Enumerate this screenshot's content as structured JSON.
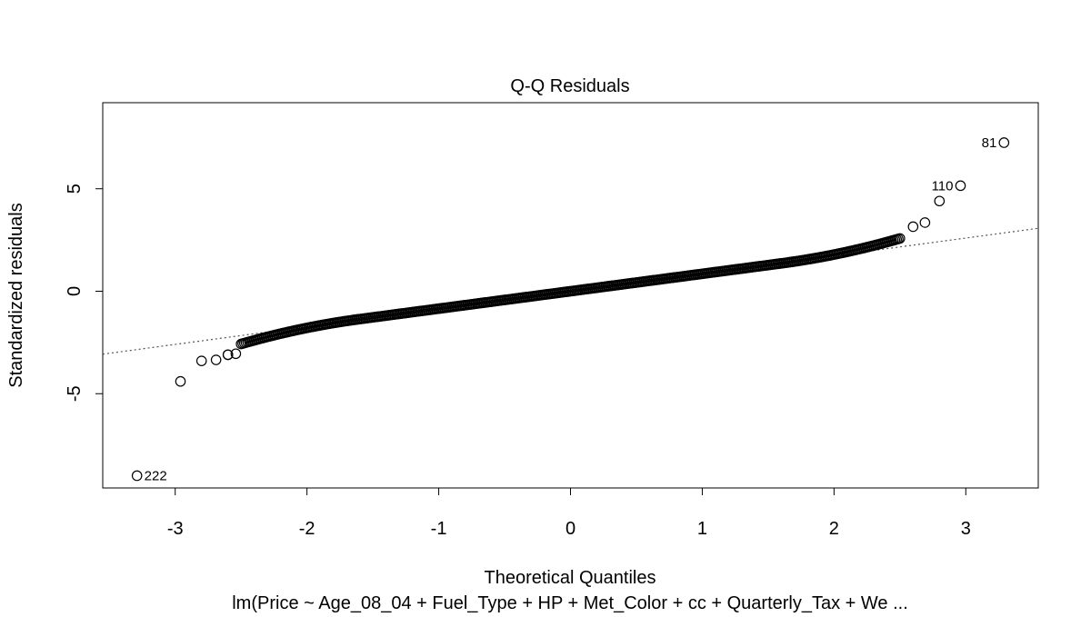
{
  "chart_data": {
    "type": "scatter",
    "title": "Q-Q Residuals",
    "xlabel": "Theoretical Quantiles",
    "ylabel": "Standardized residuals",
    "subtitle": "lm(Price ~ Age_08_04 + Fuel_Type + HP + Met_Color + cc + Quarterly_Tax + We ...",
    "xlim": [
      -3.55,
      3.55
    ],
    "ylim": [
      -9.6,
      9.2
    ],
    "x_ticks": [
      {
        "value": -3,
        "label": "-3"
      },
      {
        "value": -2,
        "label": "-2"
      },
      {
        "value": -1,
        "label": "-1"
      },
      {
        "value": 0,
        "label": "0"
      },
      {
        "value": 1,
        "label": "1"
      },
      {
        "value": 2,
        "label": "2"
      },
      {
        "value": 3,
        "label": "3"
      }
    ],
    "y_ticks": [
      {
        "value": -5,
        "label": "-5"
      },
      {
        "value": 0,
        "label": "0"
      },
      {
        "value": 5,
        "label": "5"
      }
    ],
    "reference_line": {
      "slope": 0.865,
      "intercept": 0,
      "style": "dotted",
      "color": "#555555"
    },
    "grid": false,
    "point_style": "open-circle",
    "body_model": {
      "n": 400,
      "x_range": [
        -2.5,
        2.5
      ],
      "slope": 0.865,
      "inner_slope": 0.85,
      "tail_boost": 0.45
    },
    "tail_points": [
      {
        "x": -2.96,
        "y": -4.4
      },
      {
        "x": -2.8,
        "y": -3.4
      },
      {
        "x": -2.69,
        "y": -3.35
      },
      {
        "x": -2.6,
        "y": -3.1
      },
      {
        "x": -2.54,
        "y": -3.05
      },
      {
        "x": -2.6,
        "y": -3.1
      },
      {
        "x": 2.6,
        "y": 3.15
      },
      {
        "x": 2.69,
        "y": 3.35
      },
      {
        "x": 2.8,
        "y": 4.4
      }
    ],
    "labeled_points": [
      {
        "x": 3.29,
        "y": 7.25,
        "label": "81",
        "side": "left"
      },
      {
        "x": 2.96,
        "y": 5.15,
        "label": "110",
        "side": "left"
      },
      {
        "x": -3.29,
        "y": -9.0,
        "label": "222",
        "side": "right"
      }
    ]
  }
}
